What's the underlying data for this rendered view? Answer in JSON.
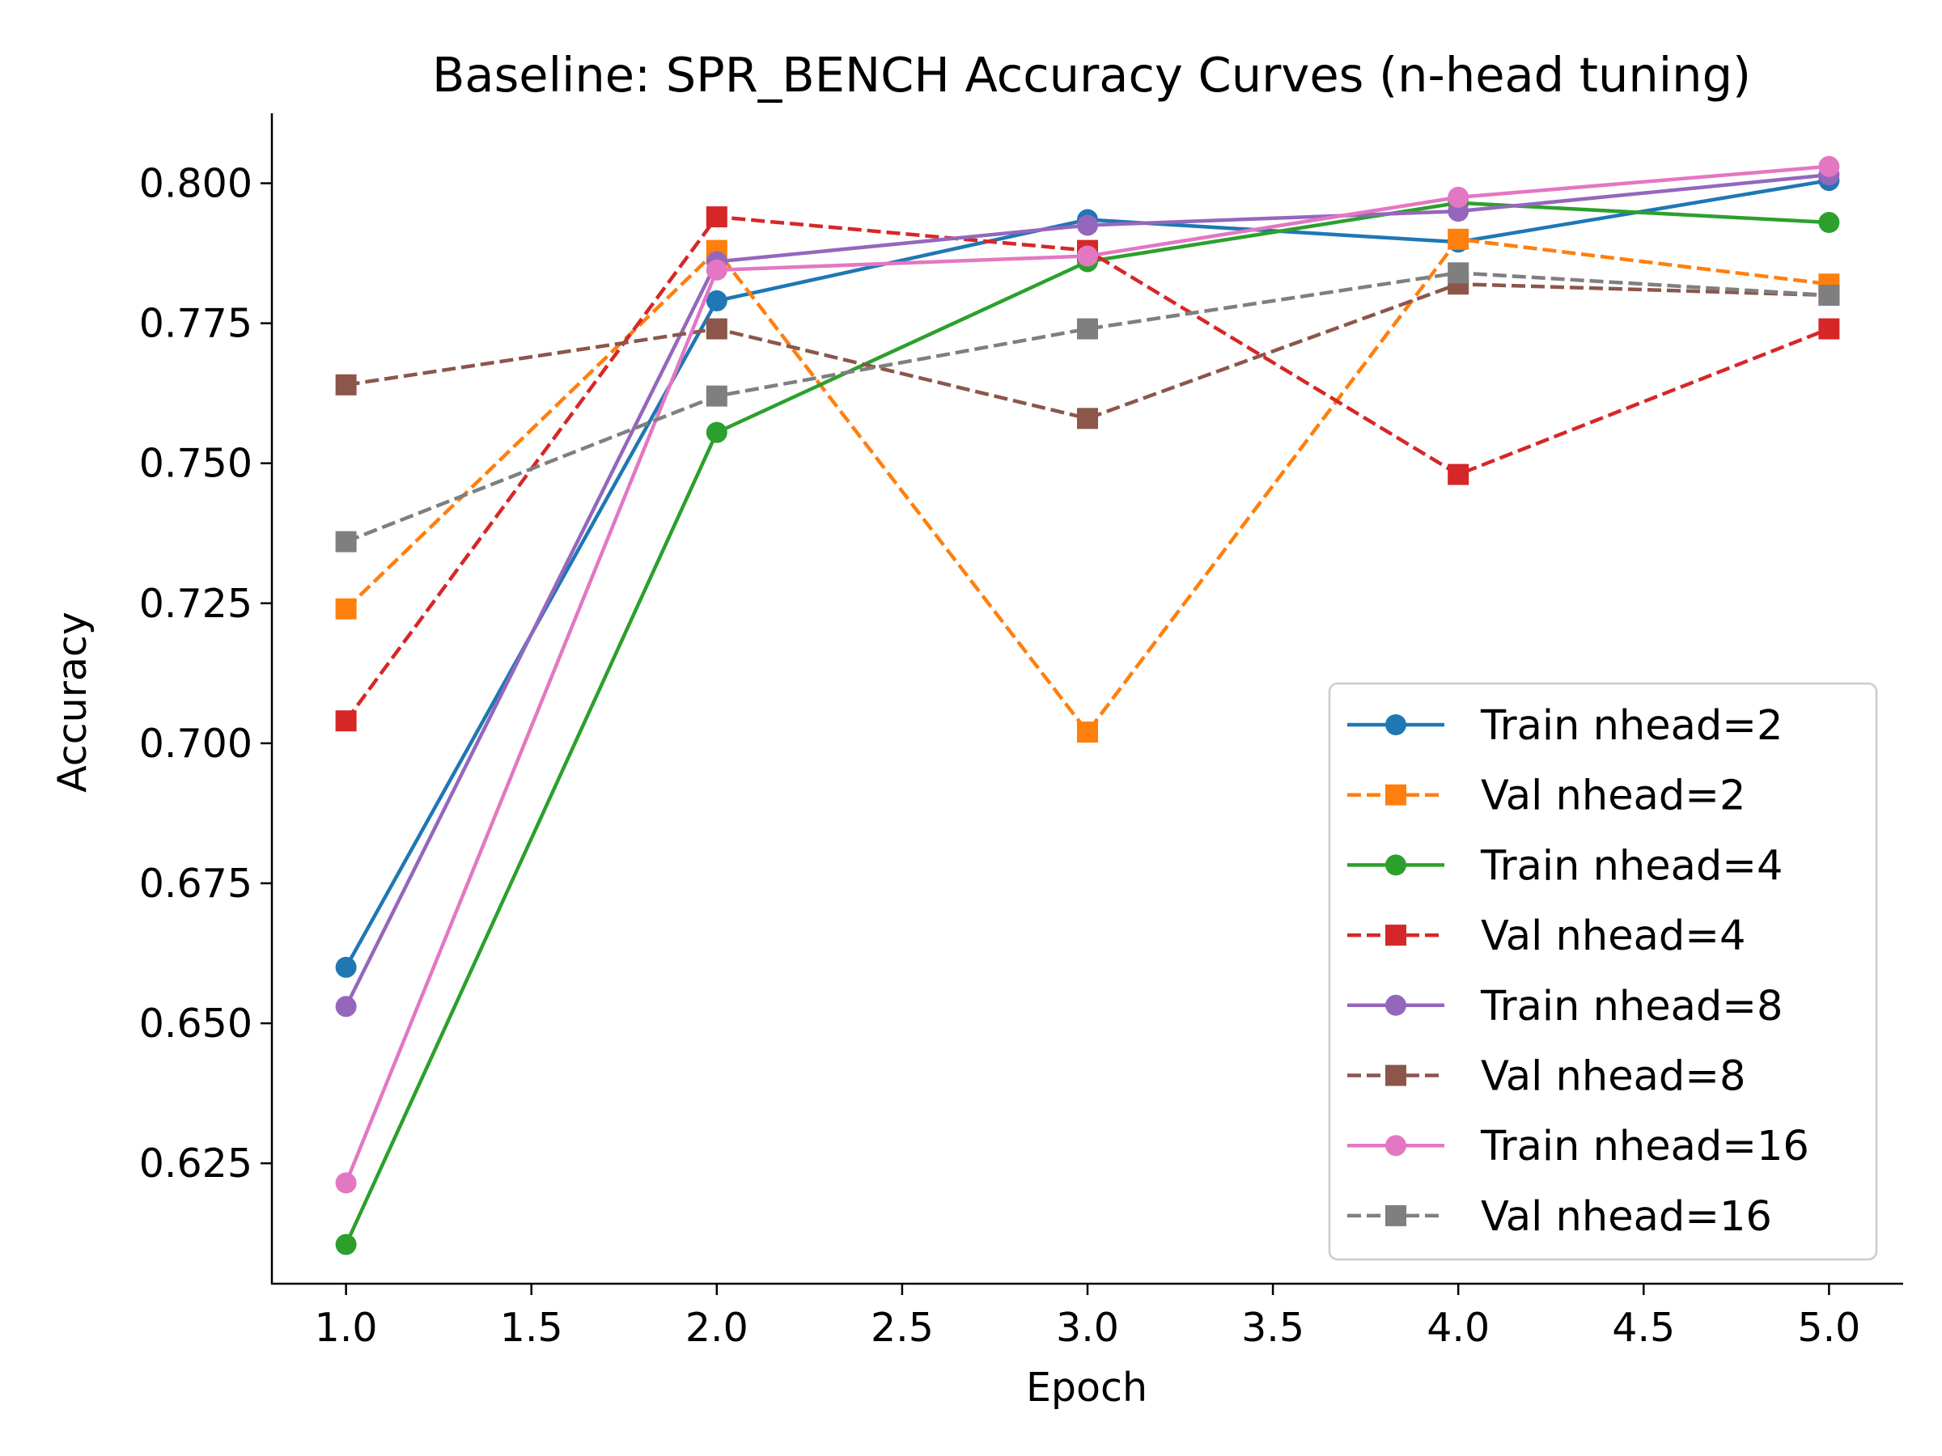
{
  "chart_data": {
    "type": "line",
    "title": "Baseline: SPR_BENCH Accuracy Curves (n-head tuning)",
    "xlabel": "Epoch",
    "ylabel": "Accuracy",
    "xlim": [
      0.8,
      5.2
    ],
    "ylim": [
      0.6035,
      0.8125
    ],
    "xticks": [
      1.0,
      1.5,
      2.0,
      2.5,
      3.0,
      3.5,
      4.0,
      4.5,
      5.0
    ],
    "xtick_labels": [
      "1.0",
      "1.5",
      "2.0",
      "2.5",
      "3.0",
      "3.5",
      "4.0",
      "4.5",
      "5.0"
    ],
    "yticks": [
      0.625,
      0.65,
      0.675,
      0.7,
      0.725,
      0.75,
      0.775,
      0.8
    ],
    "ytick_labels": [
      "0.625",
      "0.650",
      "0.675",
      "0.700",
      "0.725",
      "0.750",
      "0.775",
      "0.800"
    ],
    "grid": false,
    "legend_position": "lower-right",
    "x": [
      1,
      2,
      3,
      4,
      5
    ],
    "series": [
      {
        "name": "Train nhead=2",
        "values": [
          0.66,
          0.779,
          0.7935,
          0.7895,
          0.8005
        ],
        "color": "#1f77b4",
        "dash": "solid",
        "marker": "circle"
      },
      {
        "name": "Val nhead=2",
        "values": [
          0.724,
          0.788,
          0.702,
          0.79,
          0.782
        ],
        "color": "#ff7f0e",
        "dash": "dashed",
        "marker": "square"
      },
      {
        "name": "Train nhead=4",
        "values": [
          0.6105,
          0.7555,
          0.786,
          0.7965,
          0.793
        ],
        "color": "#2ca02c",
        "dash": "solid",
        "marker": "circle"
      },
      {
        "name": "Val nhead=4",
        "values": [
          0.704,
          0.794,
          0.788,
          0.748,
          0.774
        ],
        "color": "#d62728",
        "dash": "dashed",
        "marker": "square"
      },
      {
        "name": "Train nhead=8",
        "values": [
          0.653,
          0.786,
          0.7925,
          0.795,
          0.8015
        ],
        "color": "#9467bd",
        "dash": "solid",
        "marker": "circle"
      },
      {
        "name": "Val nhead=8",
        "values": [
          0.764,
          0.774,
          0.758,
          0.782,
          0.78
        ],
        "color": "#8c564b",
        "dash": "dashed",
        "marker": "square"
      },
      {
        "name": "Train nhead=16",
        "values": [
          0.6215,
          0.7845,
          0.787,
          0.7975,
          0.803
        ],
        "color": "#e377c2",
        "dash": "solid",
        "marker": "circle"
      },
      {
        "name": "Val nhead=16",
        "values": [
          0.736,
          0.762,
          0.774,
          0.784,
          0.78
        ],
        "color": "#7f7f7f",
        "dash": "dashed",
        "marker": "square"
      }
    ]
  }
}
